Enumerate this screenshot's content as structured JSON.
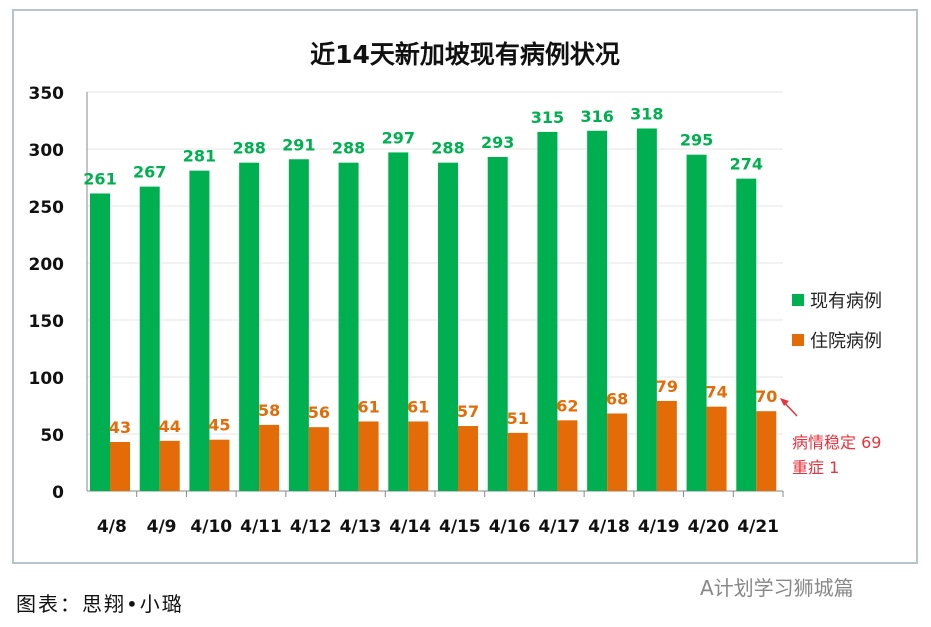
{
  "chart_data": {
    "type": "bar",
    "title": "近14天新加坡现有病例状况",
    "categories": [
      "4/8",
      "4/9",
      "4/10",
      "4/11",
      "4/12",
      "4/13",
      "4/14",
      "4/15",
      "4/16",
      "4/17",
      "4/18",
      "4/19",
      "4/20",
      "4/21"
    ],
    "series": [
      {
        "name": "现有病例",
        "color": "#00b050",
        "values": [
          261,
          267,
          281,
          288,
          291,
          288,
          297,
          288,
          293,
          315,
          316,
          318,
          295,
          274
        ]
      },
      {
        "name": "住院病例",
        "color": "#e36c09",
        "values": [
          43,
          44,
          45,
          58,
          56,
          61,
          61,
          57,
          51,
          62,
          68,
          79,
          74,
          70
        ]
      }
    ],
    "yticks": [
      0,
      50,
      100,
      150,
      200,
      250,
      300,
      350
    ],
    "ylim": [
      0,
      350
    ],
    "grid": true,
    "legend": "right",
    "annotation": {
      "line1": "病情稳定 69",
      "line2": "重症  1",
      "color": "#e8323c"
    }
  },
  "caption": "图表：思翔•小璐",
  "watermark": "A计划学习狮城篇"
}
